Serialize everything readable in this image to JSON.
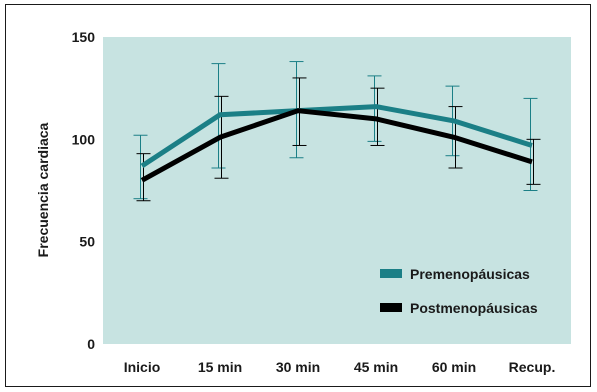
{
  "chart_data": {
    "type": "line",
    "title": "",
    "xlabel": "",
    "ylabel": "Frecuencia cardiaca",
    "categories": [
      "Inicio",
      "15 min",
      "30 min",
      "45 min",
      "60 min",
      "Recup."
    ],
    "yticks": [
      "0",
      "50",
      "100",
      "150"
    ],
    "ylim": [
      0,
      150
    ],
    "grid": false,
    "legend_position": "bottom-right",
    "plot_background": "#c7e3e1",
    "series": [
      {
        "name": "Premenopáusicas",
        "color": "#1b7f86",
        "values": [
          87,
          112,
          114,
          116,
          109,
          97
        ],
        "error_low": [
          71,
          86,
          91,
          99,
          92,
          75
        ],
        "error_high": [
          102,
          137,
          138,
          131,
          126,
          120
        ]
      },
      {
        "name": "Postmenopáusicas",
        "color": "#000000",
        "values": [
          80,
          101,
          114,
          110,
          101,
          89
        ],
        "error_low": [
          70,
          81,
          97,
          97,
          86,
          78
        ],
        "error_high": [
          93,
          121,
          130,
          125,
          116,
          100
        ]
      }
    ]
  }
}
